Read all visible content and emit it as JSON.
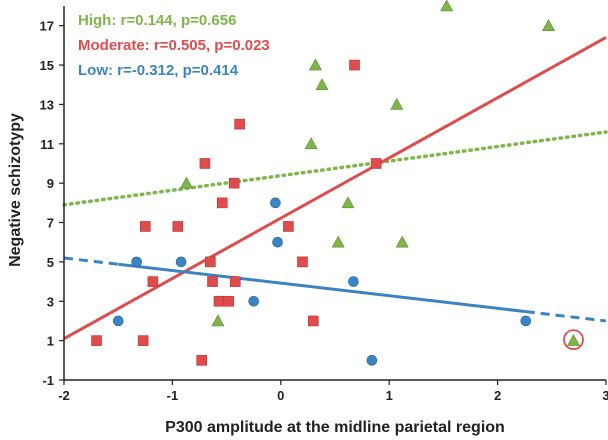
{
  "chart_data": {
    "type": "scatter",
    "title": "",
    "xlabel": "P300 amplitude at the midline parietal  region",
    "ylabel": "Negative schizotypy",
    "xlim": [
      -2,
      3
    ],
    "ylim": [
      -1,
      18
    ],
    "x_ticks": [
      "-2",
      "-1",
      "0",
      "1",
      "2",
      "3"
    ],
    "y_ticks": [
      "-1",
      "1",
      "3",
      "5",
      "7",
      "9",
      "11",
      "13",
      "15",
      "17"
    ],
    "grid": false,
    "legend_position": "top-left",
    "series": [
      {
        "name": "High: r=0.144, p=0.656",
        "color": "#7FB54A",
        "marker": "triangle",
        "points": [
          [
            -0.87,
            9
          ],
          [
            -0.58,
            2
          ],
          [
            0.28,
            11
          ],
          [
            0.32,
            15
          ],
          [
            0.38,
            14
          ],
          [
            0.53,
            6
          ],
          [
            0.62,
            8
          ],
          [
            1.07,
            13
          ],
          [
            1.12,
            6
          ],
          [
            1.53,
            18
          ],
          [
            2.47,
            17
          ],
          [
            2.7,
            1
          ]
        ],
        "fit": {
          "x": [
            -2,
            3
          ],
          "y": [
            7.9,
            11.6
          ],
          "style": "dotted"
        }
      },
      {
        "name": "Moderate: r=0.505, p=0.023",
        "color": "#E04B4B",
        "marker": "square",
        "points": [
          [
            -1.7,
            1
          ],
          [
            -1.27,
            1
          ],
          [
            -1.25,
            6.8
          ],
          [
            -1.18,
            4
          ],
          [
            -0.95,
            6.8
          ],
          [
            -0.73,
            0
          ],
          [
            -0.7,
            10
          ],
          [
            -0.65,
            5
          ],
          [
            -0.63,
            4
          ],
          [
            -0.57,
            3
          ],
          [
            -0.54,
            8
          ],
          [
            -0.48,
            3
          ],
          [
            -0.43,
            9
          ],
          [
            -0.42,
            4
          ],
          [
            -0.38,
            12
          ],
          [
            0.07,
            6.8
          ],
          [
            0.2,
            5
          ],
          [
            0.3,
            2
          ],
          [
            0.68,
            15
          ],
          [
            0.88,
            10
          ]
        ],
        "fit": {
          "x": [
            -2,
            3
          ],
          "y": [
            1.1,
            16.4
          ],
          "style": "solid"
        }
      },
      {
        "name": "Low: r=-0.312, p=0.414",
        "color": "#3B84C4",
        "marker": "circle",
        "points": [
          [
            -1.5,
            2
          ],
          [
            -1.33,
            5
          ],
          [
            -0.92,
            5
          ],
          [
            -0.25,
            3
          ],
          [
            -0.05,
            8
          ],
          [
            -0.03,
            6
          ],
          [
            0.67,
            4
          ],
          [
            0.84,
            0
          ],
          [
            2.26,
            2
          ]
        ],
        "fit": {
          "x": [
            -2,
            3
          ],
          "y": [
            5.2,
            2.0
          ],
          "style": "solid",
          "dashed_range": [
            [
              -2,
              -1.5
            ],
            [
              2.26,
              3
            ]
          ]
        }
      }
    ],
    "annotations": [
      {
        "type": "circle-highlight",
        "x": 2.7,
        "y": 1,
        "color": "#E04B4B"
      }
    ]
  }
}
